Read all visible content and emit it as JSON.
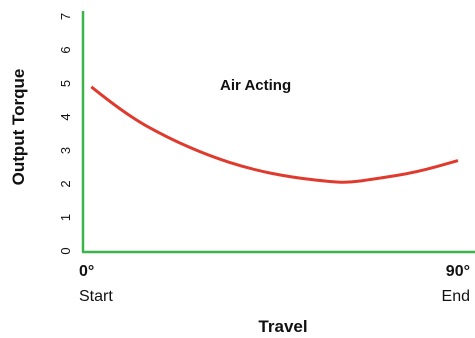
{
  "chart_data": {
    "type": "line",
    "xlabel": "Travel",
    "ylabel": "Output Torque",
    "annotation": "Air Acting",
    "ylim": [
      0,
      7
    ],
    "xlim": [
      0,
      90
    ],
    "yticks": [
      "0",
      "1",
      "2",
      "3",
      "4",
      "5",
      "6",
      "7"
    ],
    "xticks": [
      {
        "value": 0,
        "angle": "0°",
        "label": "Start"
      },
      {
        "value": 90,
        "angle": "90°",
        "label": "End"
      }
    ],
    "series": [
      {
        "color": "#e03a2e",
        "x": [
          2,
          10,
          20,
          30,
          40,
          50,
          60,
          64,
          70,
          80,
          90
        ],
        "y": [
          4.9,
          4.1,
          3.4,
          2.85,
          2.45,
          2.2,
          2.06,
          2.05,
          2.15,
          2.35,
          2.7
        ]
      }
    ],
    "axis_color": "#3cb44a",
    "grid": false
  }
}
